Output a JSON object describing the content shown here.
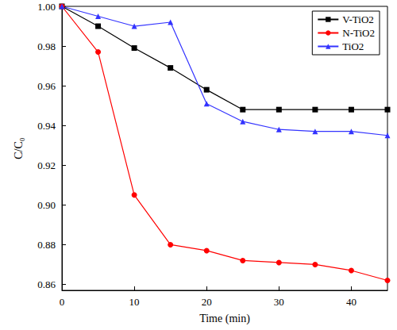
{
  "chart_data": {
    "type": "line",
    "x_label": "Time (min)",
    "y_label": "C/C₀",
    "x": [
      0,
      5,
      10,
      15,
      20,
      25,
      30,
      35,
      40,
      45
    ],
    "series": [
      {
        "name": "V-TiO2",
        "color": "#000000",
        "marker": "square",
        "values": [
          1.0,
          0.99,
          0.979,
          0.969,
          0.958,
          0.948,
          0.948,
          0.948,
          0.948,
          0.948
        ]
      },
      {
        "name": "N-TiO2",
        "color": "#ff0000",
        "marker": "circle",
        "values": [
          1.0,
          0.977,
          0.905,
          0.88,
          0.877,
          0.872,
          0.871,
          0.87,
          0.867,
          0.862
        ]
      },
      {
        "name": "TiO2",
        "color": "#3333ff",
        "marker": "triangle",
        "values": [
          1.0,
          0.995,
          0.99,
          0.992,
          0.951,
          0.942,
          0.938,
          0.937,
          0.937,
          0.935
        ]
      }
    ],
    "xlim": [
      0,
      45
    ],
    "xticks": [
      0,
      10,
      20,
      30,
      40
    ],
    "ylim": [
      0.857,
      1.0
    ],
    "yticks": [
      0.86,
      0.88,
      {
        "value": 0.9,
        "label": "0.90"
      },
      0.92,
      0.94,
      0.96,
      0.98,
      {
        "value": 1.0,
        "label": "1.00"
      }
    ],
    "legend": "upper right",
    "grid": false
  }
}
